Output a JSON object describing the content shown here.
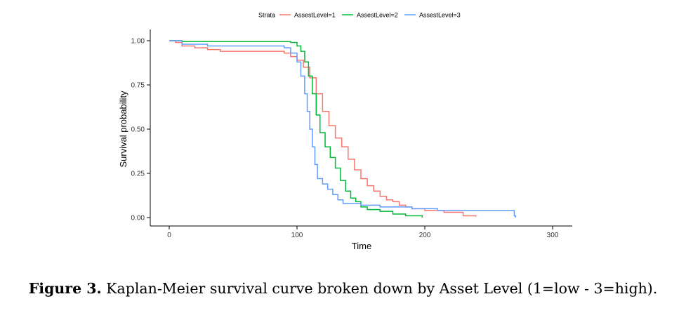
{
  "chart_data": {
    "type": "line",
    "step": true,
    "xlabel": "Time",
    "ylabel": "Survival probability",
    "xlim": [
      0,
      300
    ],
    "ylim": [
      0,
      1
    ],
    "x_ticks": [
      "0",
      "100",
      "200",
      "300"
    ],
    "y_ticks": [
      "0.00",
      "0.25",
      "0.50",
      "0.75",
      "1.00"
    ],
    "x_tick_values": [
      0,
      100,
      200,
      300
    ],
    "y_tick_values": [
      0,
      0.25,
      0.5,
      0.75,
      1.0
    ],
    "grid": false,
    "legend": {
      "title": "Strata",
      "position": "top"
    },
    "series": [
      {
        "name": "AssestLevel=1",
        "color": "#F8766D",
        "points": [
          [
            0,
            1.0
          ],
          [
            5,
            0.99
          ],
          [
            10,
            0.97
          ],
          [
            20,
            0.96
          ],
          [
            30,
            0.95
          ],
          [
            40,
            0.94
          ],
          [
            90,
            0.93
          ],
          [
            95,
            0.91
          ],
          [
            100,
            0.89
          ],
          [
            105,
            0.85
          ],
          [
            110,
            0.79
          ],
          [
            115,
            0.7
          ],
          [
            120,
            0.6
          ],
          [
            125,
            0.52
          ],
          [
            130,
            0.45
          ],
          [
            135,
            0.4
          ],
          [
            140,
            0.33
          ],
          [
            145,
            0.27
          ],
          [
            150,
            0.22
          ],
          [
            155,
            0.18
          ],
          [
            160,
            0.15
          ],
          [
            165,
            0.12
          ],
          [
            170,
            0.1
          ],
          [
            175,
            0.09
          ],
          [
            180,
            0.07
          ],
          [
            185,
            0.06
          ],
          [
            190,
            0.05
          ],
          [
            200,
            0.04
          ],
          [
            215,
            0.03
          ],
          [
            230,
            0.01
          ],
          [
            240,
            0.005
          ]
        ]
      },
      {
        "name": "AssestLevel=2",
        "color": "#00BA38",
        "points": [
          [
            0,
            1.0
          ],
          [
            10,
            0.995
          ],
          [
            95,
            0.99
          ],
          [
            100,
            0.97
          ],
          [
            103,
            0.94
          ],
          [
            106,
            0.88
          ],
          [
            109,
            0.8
          ],
          [
            112,
            0.7
          ],
          [
            115,
            0.58
          ],
          [
            118,
            0.48
          ],
          [
            122,
            0.4
          ],
          [
            126,
            0.34
          ],
          [
            130,
            0.28
          ],
          [
            134,
            0.21
          ],
          [
            138,
            0.15
          ],
          [
            142,
            0.11
          ],
          [
            146,
            0.09
          ],
          [
            150,
            0.06
          ],
          [
            155,
            0.045
          ],
          [
            165,
            0.035
          ],
          [
            175,
            0.02
          ],
          [
            185,
            0.01
          ],
          [
            198,
            0.0
          ]
        ]
      },
      {
        "name": "AssestLevel=3",
        "color": "#619CFF",
        "points": [
          [
            0,
            1.0
          ],
          [
            10,
            0.98
          ],
          [
            30,
            0.97
          ],
          [
            90,
            0.96
          ],
          [
            95,
            0.93
          ],
          [
            100,
            0.88
          ],
          [
            103,
            0.8
          ],
          [
            106,
            0.7
          ],
          [
            108,
            0.6
          ],
          [
            110,
            0.5
          ],
          [
            112,
            0.4
          ],
          [
            114,
            0.3
          ],
          [
            116,
            0.22
          ],
          [
            120,
            0.19
          ],
          [
            124,
            0.16
          ],
          [
            128,
            0.13
          ],
          [
            132,
            0.1
          ],
          [
            136,
            0.08
          ],
          [
            150,
            0.07
          ],
          [
            165,
            0.06
          ],
          [
            190,
            0.05
          ],
          [
            210,
            0.04
          ],
          [
            268,
            0.04
          ],
          [
            270,
            0.01
          ],
          [
            271,
            0.0
          ]
        ]
      }
    ]
  },
  "caption": {
    "label": "Figure 3.",
    "text": " Kaplan-Meier survival curve broken down by Asset Level (1=low - 3=high)."
  }
}
